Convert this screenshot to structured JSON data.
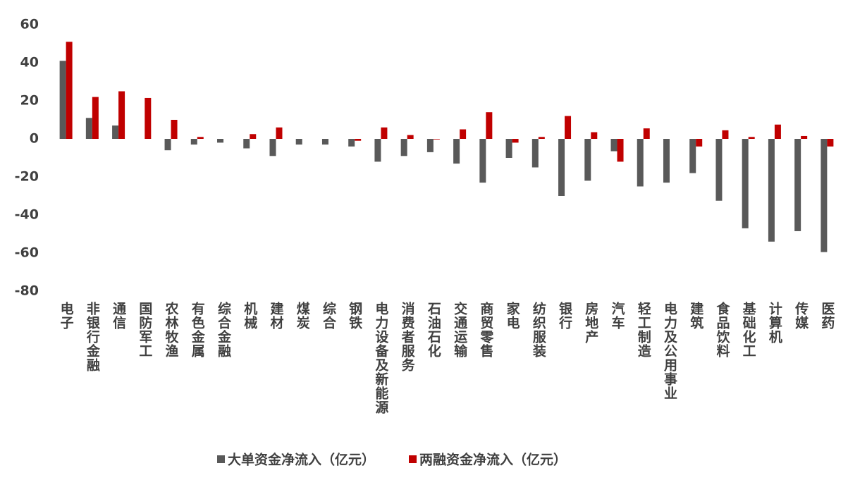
{
  "chart_data": {
    "type": "bar",
    "categories": [
      "电子",
      "非银行金融",
      "通信",
      "国防军工",
      "农林牧渔",
      "有色金属",
      "综合金融",
      "机械",
      "建材",
      "煤炭",
      "综合",
      "钢铁",
      "电力设备及新能源",
      "消费者服务",
      "石油石化",
      "交通运输",
      "商贸零售",
      "家电",
      "纺织服装",
      "银行",
      "房地产",
      "汽车",
      "轻工制造",
      "电力及公用事业",
      "建筑",
      "食品饮料",
      "基础化工",
      "计算机",
      "传媒",
      "医药"
    ],
    "series": [
      {
        "name": "大单资金净流入（亿元）",
        "color": "#595959",
        "values": [
          41,
          11,
          7,
          0,
          -6,
          -3,
          -2,
          -5,
          -9,
          -3,
          -3,
          -4,
          -12,
          -9,
          -7,
          -13,
          -23,
          -10,
          -15,
          -30,
          -22,
          -6.5,
          -25,
          -23,
          -18,
          -32.5,
          -47,
          -54,
          -48.5,
          -59.5
        ]
      },
      {
        "name": "两融资金净流入（亿元）",
        "color": "#c00000",
        "values": [
          51,
          22,
          25,
          21.5,
          10,
          1,
          0,
          2.5,
          6,
          0,
          0,
          -1,
          6,
          2,
          -0.3,
          5,
          14,
          -2,
          1,
          12,
          3.5,
          -12,
          5.5,
          0,
          -4,
          4.5,
          1,
          7.5,
          1.5,
          -4
        ]
      }
    ],
    "ylim": [
      -80,
      60
    ],
    "yticks": [
      -80,
      -60,
      -40,
      -20,
      0,
      20,
      40,
      60
    ],
    "grid": false,
    "legend": "bottom"
  }
}
